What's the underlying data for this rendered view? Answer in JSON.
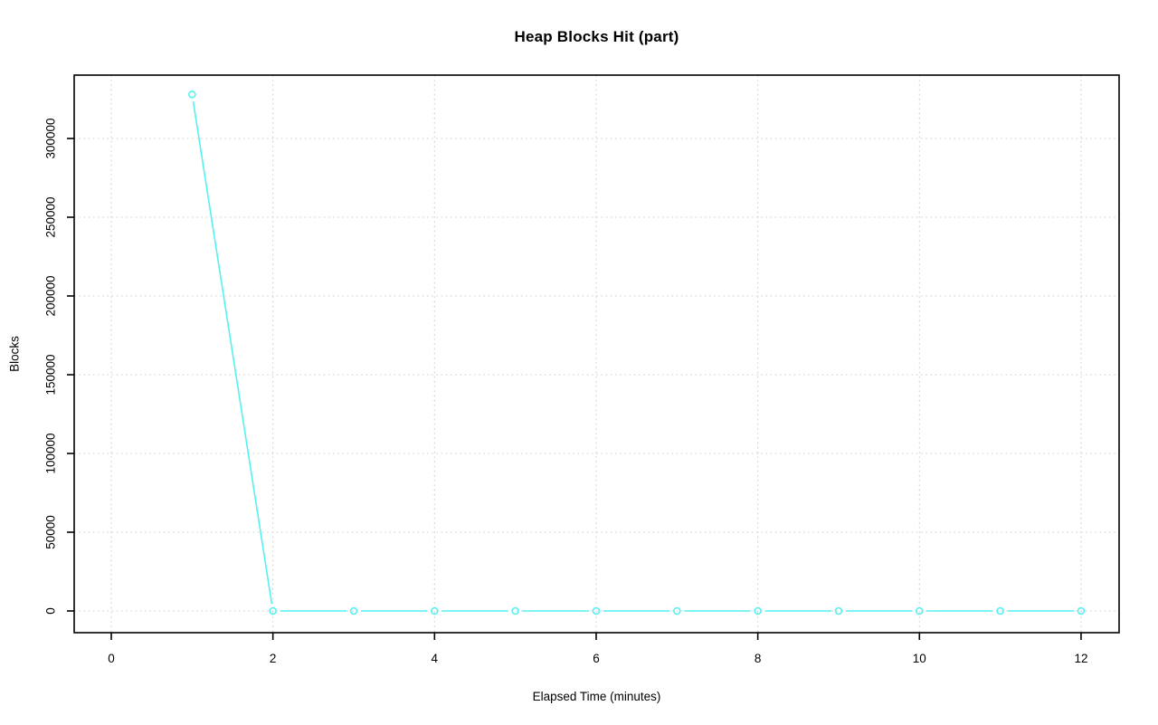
{
  "chart_data": {
    "type": "line",
    "title": "Heap Blocks Hit (part)",
    "xlabel": "Elapsed Time (minutes)",
    "ylabel": "Blocks",
    "x": [
      1,
      2,
      3,
      4,
      5,
      6,
      7,
      8,
      9,
      10,
      11,
      12
    ],
    "y": [
      328000,
      0,
      0,
      0,
      0,
      0,
      0,
      0,
      0,
      0,
      0,
      0
    ],
    "xticks": [
      0,
      2,
      4,
      6,
      8,
      10,
      12
    ],
    "yticks": [
      0,
      50000,
      100000,
      150000,
      200000,
      250000,
      300000
    ],
    "xlim": [
      -0.46,
      12.47
    ],
    "ylim": [
      -13800,
      340200
    ],
    "grid": "dotted, vertical at x ticks and horizontal at y ticks",
    "legend": "none",
    "marker": "open-circle",
    "line_style": "type-b (line segments with gaps around markers)",
    "colors": {
      "line": "#55F1F1",
      "grid": "#CFCFCF",
      "axis": "#000000",
      "text": "#000000",
      "background": "#FFFFFF"
    }
  }
}
